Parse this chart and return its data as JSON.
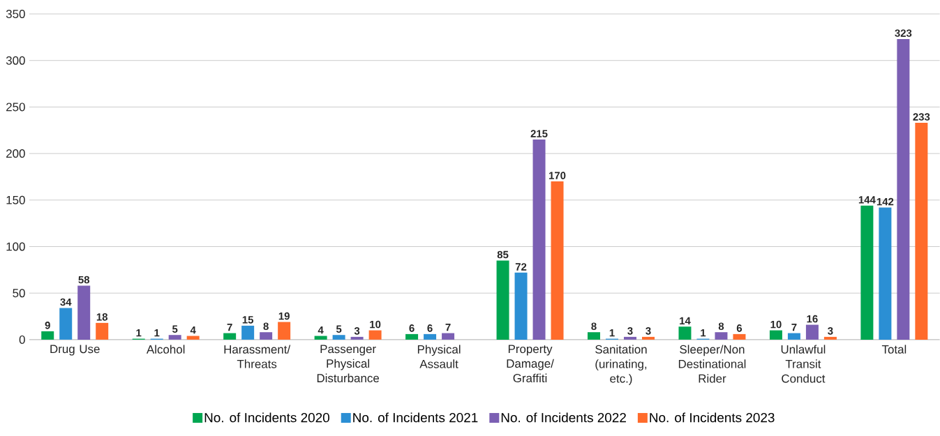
{
  "chart_data": {
    "type": "bar",
    "categories": [
      "Drug Use",
      "Alcohol",
      "Harassment/ Threats",
      "Passenger Physical Disturbance",
      "Physical Assault",
      "Property Damage/ Graffiti",
      "Sanitation (urinating, etc.)",
      "Sleeper/Non Destinational Rider",
      "Unlawful Transit Conduct",
      "Total"
    ],
    "series": [
      {
        "name": "No. of Incidents 2020",
        "color": "#00a651",
        "values": [
          9,
          1,
          7,
          4,
          6,
          85,
          8,
          14,
          10,
          144
        ]
      },
      {
        "name": "No. of Incidents 2021",
        "color": "#2b8fd4",
        "values": [
          34,
          1,
          15,
          5,
          6,
          72,
          1,
          1,
          7,
          142
        ]
      },
      {
        "name": "No. of Incidents 2022",
        "color": "#7b5fb3",
        "values": [
          58,
          5,
          8,
          3,
          7,
          215,
          3,
          8,
          16,
          323
        ]
      },
      {
        "name": "No. of Incidents 2023",
        "color": "#ff6b2b",
        "values": [
          18,
          4,
          19,
          10,
          null,
          170,
          3,
          6,
          3,
          233
        ]
      }
    ],
    "ylim": [
      0,
      350
    ],
    "yticks": [
      0,
      50,
      100,
      150,
      200,
      250,
      300,
      350
    ],
    "grid": "y",
    "legend": "bottom",
    "data_labels": true
  }
}
